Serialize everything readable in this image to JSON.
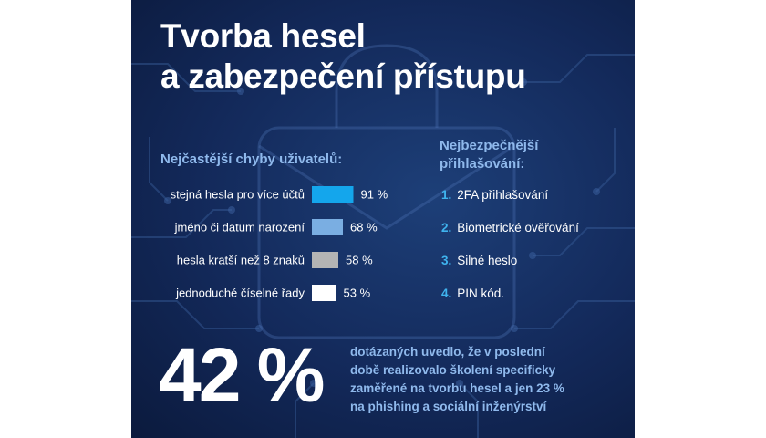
{
  "title_lines": [
    "Tvorba hesel",
    "a zabezpečení přístupu"
  ],
  "left_heading": "Nejčastější chyby uživatelů:",
  "right_heading_lines": [
    "Nejbezpečnější",
    "přihlašování:"
  ],
  "chart_data": {
    "type": "bar",
    "orientation": "horizontal",
    "categories": [
      "stejná hesla pro více účtů",
      "jméno či datum narození",
      "hesla kratší než 8 znaků",
      "jednoduché číselné řady"
    ],
    "values": [
      91,
      68,
      58,
      53
    ],
    "value_labels": [
      "91 %",
      "68 %",
      "58 %",
      "53 %"
    ],
    "colors": [
      "#14a6ec",
      "#7aaee2",
      "#b4b4b4",
      "#ffffff"
    ],
    "xlim": [
      0,
      100
    ],
    "title": "Nejčastější chyby uživatelů:"
  },
  "ranking": [
    {
      "num": "1.",
      "label": "2FA přihlašování"
    },
    {
      "num": "2.",
      "label": "Biometrické ověřování"
    },
    {
      "num": "3.",
      "label": "Silné heslo"
    },
    {
      "num": "4.",
      "label": "PIN kód."
    }
  ],
  "stat": {
    "value": "42 %",
    "text_lines": [
      "dotázaných uvedlo, že v poslední",
      "době realizovalo školení specificky",
      "zaměřené na tvorbu hesel a jen 23 %",
      "na phishing a sociální inženýrství"
    ]
  }
}
